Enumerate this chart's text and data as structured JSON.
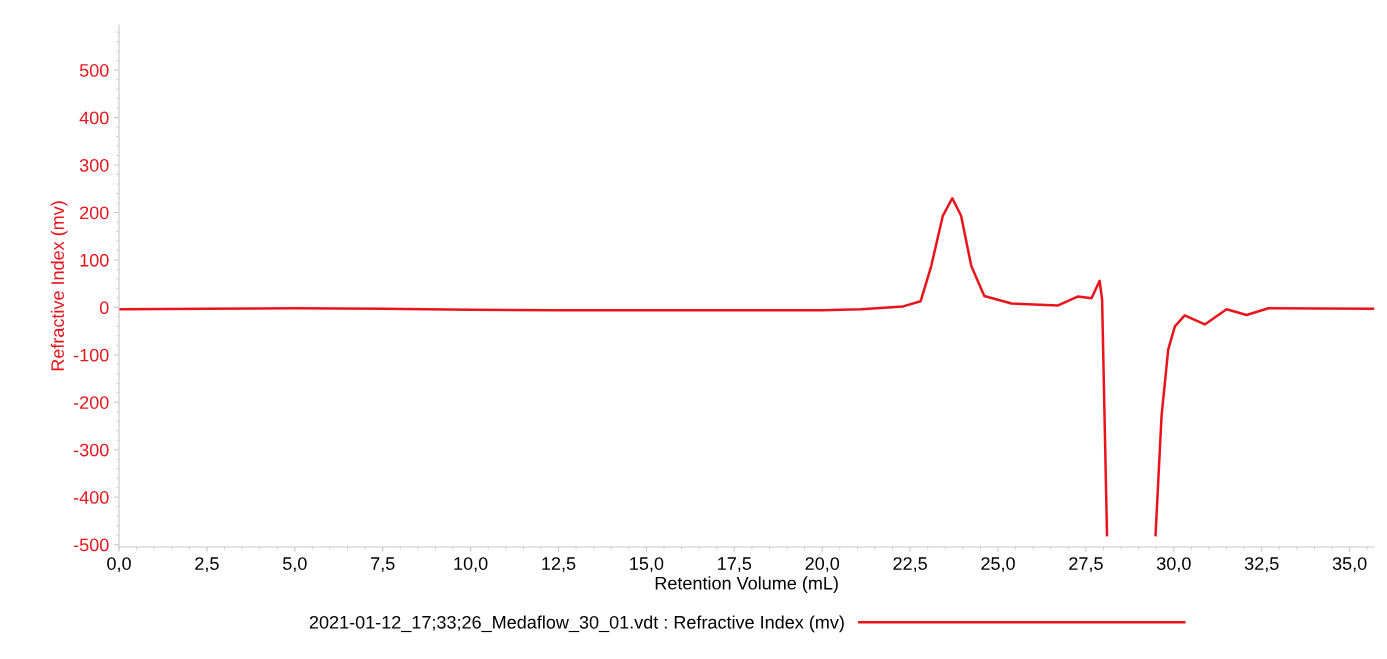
{
  "chart_data": {
    "type": "line",
    "xlabel": "Retention Volume (mL)",
    "ylabel": "Refractive Index (mv)",
    "series": [
      {
        "name": "2021-01-12_17;33;26_Medaflow_30_01.vdt : Refractive Index (mv)",
        "color": "#e8141c",
        "x": [
          0,
          2.5,
          5,
          7.5,
          10,
          12.5,
          15,
          17.5,
          20,
          21.1,
          22.3,
          22.8,
          23.1,
          23.43,
          23.7,
          23.95,
          24.24,
          24.61,
          25.38,
          26.71,
          27.28,
          27.66,
          27.89,
          27.96,
          28.1,
          28.5,
          29.48,
          29.65,
          29.84,
          30.03,
          30.31,
          30.88,
          31.5,
          32.07,
          32.69,
          35.7
        ],
        "values": [
          -4,
          -3,
          -2,
          -3,
          -5,
          -6,
          -6,
          -6,
          -6,
          -4,
          2,
          13,
          87,
          193,
          230,
          193,
          87,
          24,
          8,
          4,
          23,
          19,
          56,
          17,
          -480,
          null,
          -480,
          -230,
          -89,
          -40,
          -17,
          -36,
          -4,
          -16,
          -2,
          -3
        ]
      }
    ],
    "xlim": [
      0,
      35.7
    ],
    "ylim": [
      -505,
      595
    ],
    "xticks": [
      {
        "value": 0,
        "label": "0,0"
      },
      {
        "value": 2.5,
        "label": "2,5"
      },
      {
        "value": 5,
        "label": "5,0"
      },
      {
        "value": 7.5,
        "label": "7,5"
      },
      {
        "value": 10,
        "label": "10,0"
      },
      {
        "value": 12.5,
        "label": "12,5"
      },
      {
        "value": 15,
        "label": "15,0"
      },
      {
        "value": 17.5,
        "label": "17,5"
      },
      {
        "value": 20,
        "label": "20,0"
      },
      {
        "value": 22.5,
        "label": "22,5"
      },
      {
        "value": 25,
        "label": "25,0"
      },
      {
        "value": 27.5,
        "label": "27,5"
      },
      {
        "value": 30,
        "label": "30,0"
      },
      {
        "value": 32.5,
        "label": "32,5"
      },
      {
        "value": 35,
        "label": "35,0"
      }
    ],
    "yticks": [
      -500,
      -400,
      -300,
      -200,
      -100,
      0,
      100,
      200,
      300,
      400,
      500
    ],
    "grid": false,
    "legend": "bottom",
    "marker": "none",
    "line_style": "solid"
  }
}
